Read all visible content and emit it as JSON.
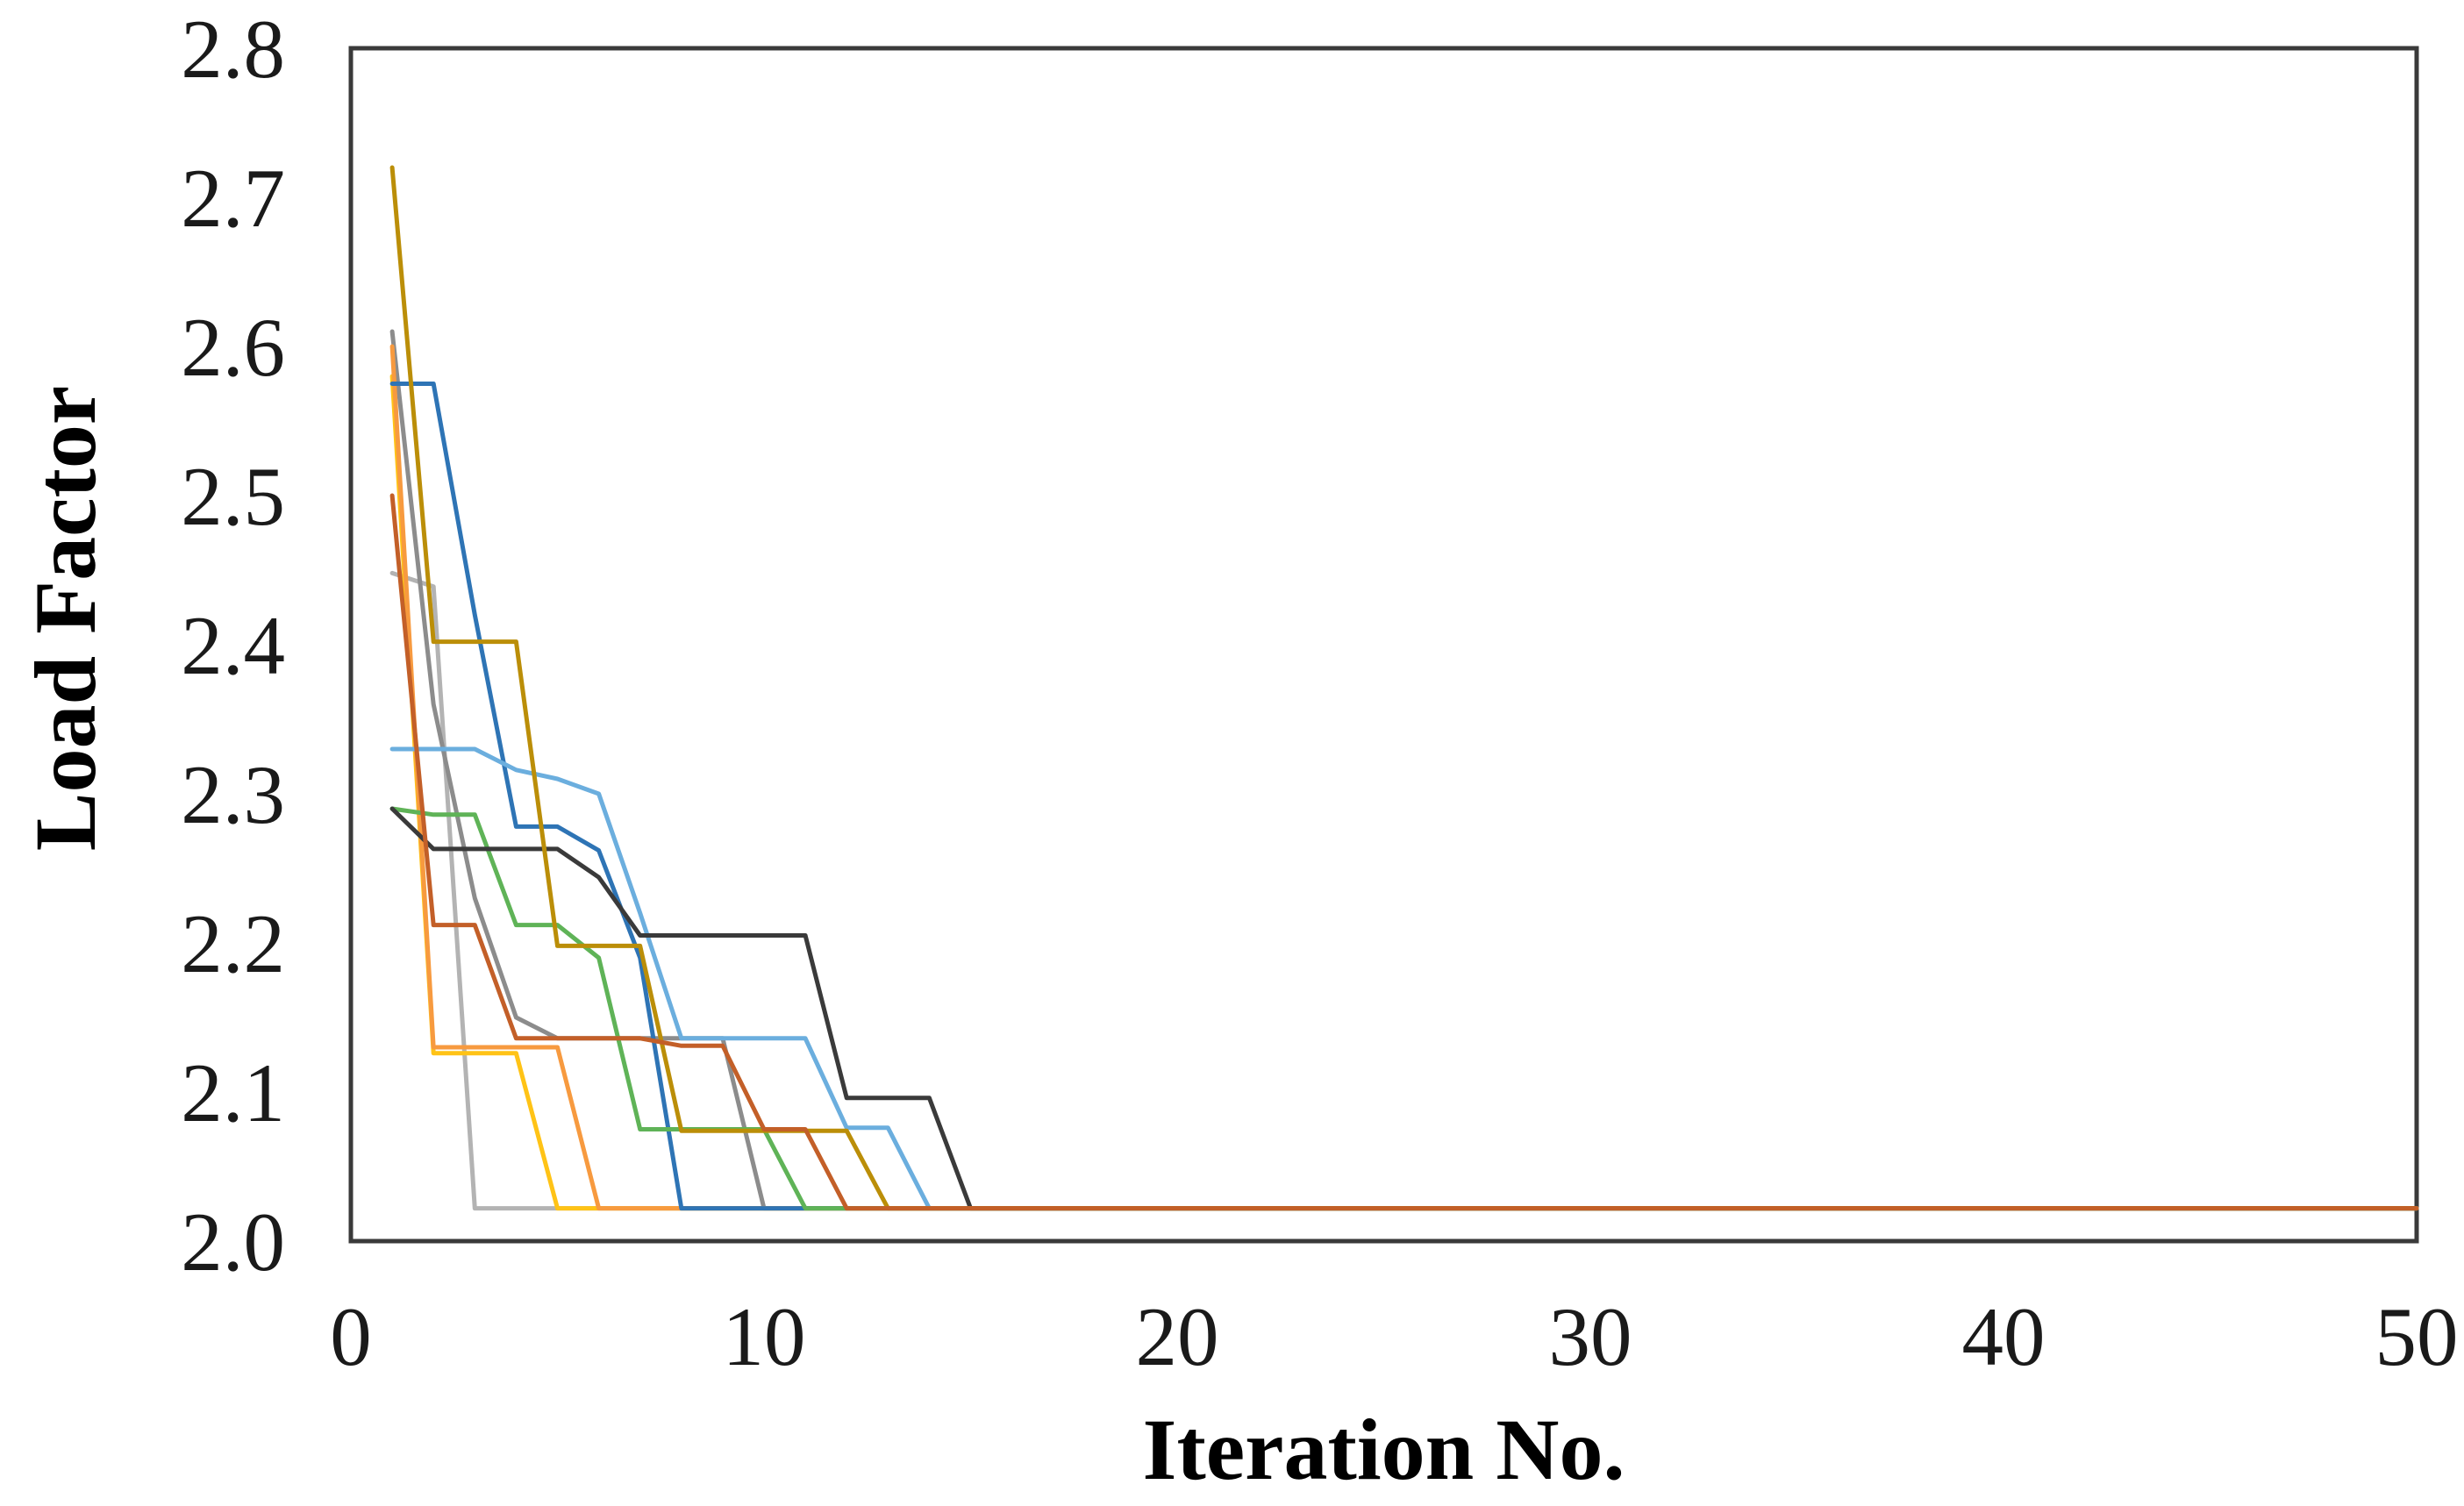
{
  "chart_data": {
    "type": "line",
    "title": "",
    "xlabel": "Iteration No.",
    "ylabel": "Load Factor",
    "grid": false,
    "legend": "none",
    "frame_color": "#3a3a3a",
    "converged_value": 2.022,
    "x_axis": {
      "min": 0,
      "max": 50,
      "ticks": [
        {
          "label": "0",
          "value": 0
        },
        {
          "label": "10",
          "value": 10
        },
        {
          "label": "20",
          "value": 20
        },
        {
          "label": "30",
          "value": 30
        },
        {
          "label": "40",
          "value": 40
        },
        {
          "label": "50",
          "value": 50
        }
      ]
    },
    "y_axis": {
      "min": 2.0,
      "max": 2.8,
      "ticks": [
        {
          "label": "2.0",
          "value": 2.0
        },
        {
          "label": "2.1",
          "value": 2.1
        },
        {
          "label": "2.2",
          "value": 2.2
        },
        {
          "label": "2.3",
          "value": 2.3
        },
        {
          "label": "2.4",
          "value": 2.4
        },
        {
          "label": "2.5",
          "value": 2.5
        },
        {
          "label": "2.6",
          "value": 2.6
        },
        {
          "label": "2.7",
          "value": 2.7
        },
        {
          "label": "2.8",
          "value": 2.8
        }
      ]
    },
    "x_start": 1,
    "note": "Each series lists Load Factor values from iteration 1; after the last listed value the series stays at the converged value 2.022 through iteration 50.",
    "series": [
      {
        "name": "silver",
        "color": "#b3b3b3",
        "values": [
          2.448,
          2.439,
          2.022
        ]
      },
      {
        "name": "gray",
        "color": "#8c8c8c",
        "values": [
          2.61,
          2.36,
          2.23,
          2.15,
          2.136,
          2.136,
          2.136,
          2.136,
          2.136,
          2.022
        ]
      },
      {
        "name": "yellow",
        "color": "#ffc316",
        "values": [
          2.58,
          2.126,
          2.126,
          2.126,
          2.022
        ]
      },
      {
        "name": "orange",
        "color": "#f79a3f",
        "values": [
          2.6,
          2.13,
          2.13,
          2.13,
          2.13,
          2.022
        ]
      },
      {
        "name": "dark-blue",
        "color": "#2e74b5",
        "values": [
          2.575,
          2.575,
          2.42,
          2.278,
          2.278,
          2.262,
          2.19,
          2.022
        ]
      },
      {
        "name": "green",
        "color": "#5fb357",
        "values": [
          2.29,
          2.286,
          2.286,
          2.212,
          2.212,
          2.19,
          2.075,
          2.075,
          2.075,
          2.075,
          2.022
        ]
      },
      {
        "name": "light-blue",
        "color": "#6baede",
        "values": [
          2.33,
          2.33,
          2.33,
          2.316,
          2.31,
          2.3,
          2.22,
          2.136,
          2.136,
          2.136,
          2.136,
          2.076,
          2.076,
          2.022
        ]
      },
      {
        "name": "black",
        "color": "#3a3a3a",
        "values": [
          2.29,
          2.263,
          2.263,
          2.263,
          2.263,
          2.244,
          2.205,
          2.205,
          2.205,
          2.205,
          2.205,
          2.096,
          2.096,
          2.096,
          2.022
        ]
      },
      {
        "name": "gold",
        "color": "#bb8e08",
        "values": [
          2.72,
          2.402,
          2.402,
          2.402,
          2.198,
          2.198,
          2.198,
          2.074,
          2.074,
          2.074,
          2.074,
          2.074,
          2.022
        ]
      },
      {
        "name": "rust",
        "color": "#c35f28",
        "values": [
          2.5,
          2.212,
          2.212,
          2.136,
          2.136,
          2.136,
          2.136,
          2.131,
          2.131,
          2.075,
          2.075,
          2.022
        ]
      }
    ]
  }
}
